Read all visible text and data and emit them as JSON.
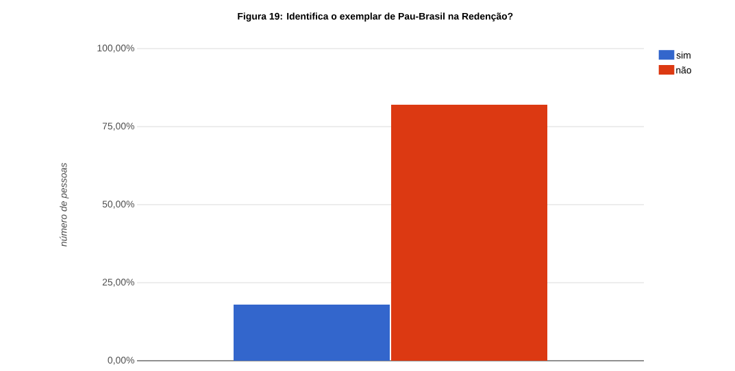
{
  "chart_data": {
    "type": "bar",
    "title": "Figura 19: Identifica o exemplar de Pau-Brasil na Redenção?",
    "ylabel": "número de pessoas",
    "categories": [
      null
    ],
    "series": [
      {
        "name": "sim",
        "color": "#3366cc",
        "values": [
          18
        ]
      },
      {
        "name": "não",
        "color": "#dc3912",
        "values": [
          82
        ]
      }
    ],
    "ylim": [
      0,
      100
    ],
    "yticks": [
      {
        "value": 0,
        "label": "0,00%"
      },
      {
        "value": 25,
        "label": "25,00%"
      },
      {
        "value": 50,
        "label": "50,00%"
      },
      {
        "value": 75,
        "label": "75,00%"
      },
      {
        "value": 100,
        "label": "100,00%"
      }
    ],
    "grid": "y",
    "legend": "top right"
  }
}
